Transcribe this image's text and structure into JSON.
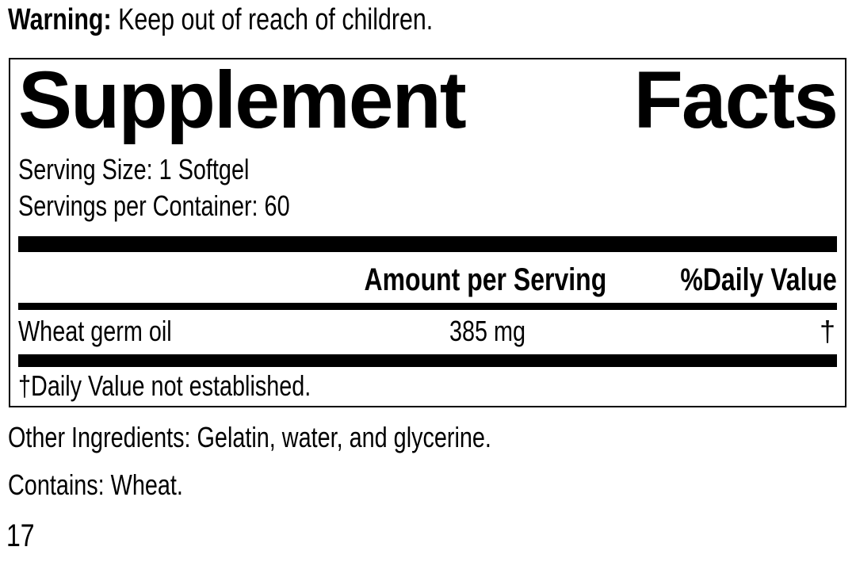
{
  "warning": {
    "label": "Warning:",
    "text": "Keep out of reach of children."
  },
  "facts": {
    "title_words": [
      "Supplement",
      "Facts"
    ],
    "serving_size": "Serving Size: 1 Softgel",
    "servings_per_container": "Servings per Container: 60",
    "columns": {
      "amount": "Amount per Serving",
      "daily_value": "%Daily Value"
    },
    "rows": [
      {
        "name": "Wheat germ oil",
        "amount": "385 mg",
        "daily_value": "†"
      }
    ],
    "footnote": "†Daily Value not established."
  },
  "other_ingredients": "Other Ingredients: Gelatin, water, and glycerine.",
  "contains": "Contains: Wheat.",
  "page_number": "17",
  "colors": {
    "text": "#000000",
    "background": "#ffffff",
    "border": "#000000"
  }
}
